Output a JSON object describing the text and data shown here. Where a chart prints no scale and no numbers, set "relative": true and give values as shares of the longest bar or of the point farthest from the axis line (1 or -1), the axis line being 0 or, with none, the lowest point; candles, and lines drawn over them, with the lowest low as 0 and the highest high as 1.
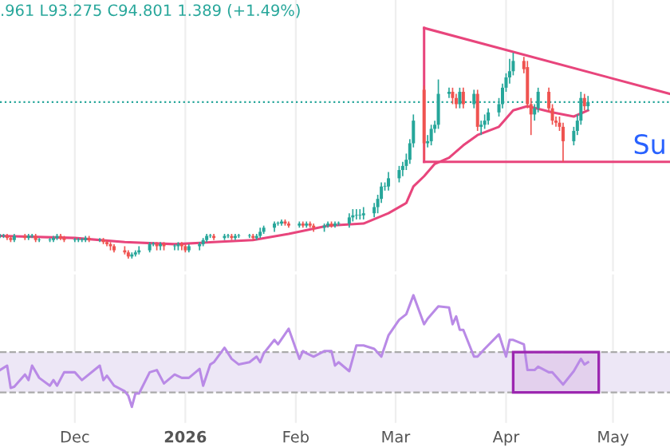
{
  "chart_data": [
    {
      "type": "candlestick",
      "relative": true,
      "tick_labels": false,
      "grid": "x",
      "legend": false,
      "annotations": [
        ".961 L93.275 C94.801 1.389 (+1.49%)",
        "Su"
      ],
      "xlim": [
        "2025-11-10",
        "2026-05-17"
      ],
      "xticks": [
        {
          "value": "2025-12-01",
          "label": null
        },
        {
          "value": "2026-01-01",
          "label": null
        },
        {
          "value": "2026-02-01",
          "label": null
        },
        {
          "value": "2026-03-01",
          "label": null
        },
        {
          "value": "2026-04-01",
          "label": null
        },
        {
          "value": "2026-05-01",
          "label": null
        }
      ],
      "x": [
        "2025-11-10",
        "2025-11-11",
        "2025-11-12",
        "2025-11-13",
        "2025-11-14",
        "2025-11-17",
        "2025-11-18",
        "2025-11-19",
        "2025-11-20",
        "2025-11-21",
        "2025-11-24",
        "2025-11-25",
        "2025-11-26",
        "2025-11-27",
        "2025-11-28",
        "2025-12-01",
        "2025-12-02",
        "2025-12-03",
        "2025-12-04",
        "2025-12-05",
        "2025-12-08",
        "2025-12-09",
        "2025-12-10",
        "2025-12-11",
        "2025-12-12",
        "2025-12-15",
        "2025-12-16",
        "2025-12-17",
        "2025-12-18",
        "2025-12-19",
        "2025-12-22",
        "2025-12-23",
        "2025-12-24",
        "2025-12-25",
        "2025-12-26",
        "2025-12-29",
        "2025-12-30",
        "2025-12-31",
        "2026-01-01",
        "2026-01-02",
        "2026-01-05",
        "2026-01-06",
        "2026-01-07",
        "2026-01-08",
        "2026-01-09",
        "2026-01-12",
        "2026-01-13",
        "2026-01-14",
        "2026-01-15",
        "2026-01-16",
        "2026-01-19",
        "2026-01-20",
        "2026-01-21",
        "2026-01-22",
        "2026-01-23",
        "2026-01-26",
        "2026-01-27",
        "2026-01-28",
        "2026-01-29",
        "2026-01-30",
        "2026-02-02",
        "2026-02-03",
        "2026-02-04",
        "2026-02-05",
        "2026-02-06",
        "2026-02-09",
        "2026-02-10",
        "2026-02-11",
        "2026-02-12",
        "2026-02-13",
        "2026-02-16",
        "2026-02-17",
        "2026-02-18",
        "2026-02-19",
        "2026-02-20",
        "2026-02-23",
        "2026-02-24",
        "2026-02-25",
        "2026-02-26",
        "2026-02-27",
        "2026-03-02",
        "2026-03-03",
        "2026-03-04",
        "2026-03-05",
        "2026-03-06",
        "2026-03-09",
        "2026-03-10",
        "2026-03-11",
        "2026-03-12",
        "2026-03-13",
        "2026-03-16",
        "2026-03-17",
        "2026-03-18",
        "2026-03-19",
        "2026-03-20",
        "2026-03-23",
        "2026-03-24",
        "2026-03-25",
        "2026-03-26",
        "2026-03-27",
        "2026-03-30",
        "2026-03-31",
        "2026-04-01",
        "2026-04-02",
        "2026-04-03",
        "2026-04-06",
        "2026-04-07",
        "2026-04-08",
        "2026-04-09",
        "2026-04-10",
        "2026-04-13",
        "2026-04-14",
        "2026-04-15",
        "2026-04-16",
        "2026-04-17",
        "2026-04-20",
        "2026-04-21",
        "2026-04-22",
        "2026-04-23",
        "2026-04-24"
      ],
      "ohlc": [
        [
          0.11,
          0.12,
          0.1,
          0.11
        ],
        [
          0.11,
          0.12,
          0.1,
          0.11
        ],
        [
          0.11,
          0.12,
          0.09,
          0.1
        ],
        [
          0.1,
          0.11,
          0.08,
          0.09
        ],
        [
          0.09,
          0.12,
          0.08,
          0.11
        ],
        [
          0.11,
          0.12,
          0.09,
          0.1
        ],
        [
          0.1,
          0.12,
          0.09,
          0.11
        ],
        [
          0.11,
          0.12,
          0.1,
          0.11
        ],
        [
          0.11,
          0.12,
          0.08,
          0.09
        ],
        [
          0.09,
          0.1,
          0.08,
          0.09
        ],
        [
          0.09,
          0.1,
          0.08,
          0.09
        ],
        [
          0.09,
          0.11,
          0.08,
          0.1
        ],
        [
          0.1,
          0.12,
          0.09,
          0.11
        ],
        [
          0.11,
          0.12,
          0.09,
          0.1
        ],
        [
          0.1,
          0.11,
          0.08,
          0.09
        ],
        [
          0.09,
          0.1,
          0.08,
          0.09
        ],
        [
          0.09,
          0.1,
          0.08,
          0.09
        ],
        [
          0.09,
          0.1,
          0.08,
          0.09
        ],
        [
          0.09,
          0.11,
          0.08,
          0.1
        ],
        [
          0.1,
          0.11,
          0.08,
          0.09
        ],
        [
          0.09,
          0.1,
          0.08,
          0.09
        ],
        [
          0.09,
          0.1,
          0.07,
          0.08
        ],
        [
          0.08,
          0.09,
          0.06,
          0.07
        ],
        [
          0.07,
          0.08,
          0.04,
          0.06
        ],
        [
          0.06,
          0.07,
          0.03,
          0.04
        ],
        [
          0.04,
          0.06,
          0.02,
          0.03
        ],
        [
          0.03,
          0.04,
          0,
          0.01
        ],
        [
          0.01,
          0.03,
          0,
          0.02
        ],
        [
          0.02,
          0.04,
          0.01,
          0.03
        ],
        [
          0.03,
          0.06,
          0.02,
          0.04
        ],
        [
          0.04,
          0.08,
          0.03,
          0.07
        ],
        [
          0.07,
          0.08,
          0.06,
          0.07
        ],
        [
          0.07,
          0.08,
          0.04,
          0.06
        ],
        [
          0.06,
          0.08,
          0.04,
          0.07
        ],
        [
          0.07,
          0.08,
          0.04,
          0.06
        ],
        [
          0.06,
          0.07,
          0.04,
          0.06
        ],
        [
          0.06,
          0.08,
          0.04,
          0.07
        ],
        [
          0.07,
          0.08,
          0.04,
          0.06
        ],
        [
          0.06,
          0.07,
          0.03,
          0.04
        ],
        [
          0.04,
          0.07,
          0.03,
          0.06
        ],
        [
          0.06,
          0.08,
          0.04,
          0.07
        ],
        [
          0.07,
          0.1,
          0.06,
          0.09
        ],
        [
          0.09,
          0.12,
          0.08,
          0.11
        ],
        [
          0.11,
          0.12,
          0.1,
          0.11
        ],
        [
          0.11,
          0.12,
          0.09,
          0.1
        ],
        [
          0.1,
          0.12,
          0.09,
          0.11
        ],
        [
          0.11,
          0.12,
          0.1,
          0.11
        ],
        [
          0.11,
          0.12,
          0.09,
          0.1
        ],
        [
          0.1,
          0.12,
          0.09,
          0.11
        ],
        [
          0.11,
          0.12,
          0.1,
          0.11
        ],
        [
          0.11,
          0.12,
          0.1,
          0.11
        ],
        [
          0.11,
          0.12,
          0.09,
          0.1
        ],
        [
          0.1,
          0.12,
          0.09,
          0.11
        ],
        [
          0.11,
          0.15,
          0.1,
          0.13
        ],
        [
          0.13,
          0.16,
          0.12,
          0.15
        ],
        [
          0.15,
          0.18,
          0.13,
          0.17
        ],
        [
          0.17,
          0.18,
          0.16,
          0.17
        ],
        [
          0.17,
          0.19,
          0.16,
          0.18
        ],
        [
          0.18,
          0.19,
          0.16,
          0.17
        ],
        [
          0.17,
          0.18,
          0.15,
          0.16
        ],
        [
          0.16,
          0.18,
          0.15,
          0.17
        ],
        [
          0.17,
          0.18,
          0.15,
          0.16
        ],
        [
          0.16,
          0.18,
          0.15,
          0.17
        ],
        [
          0.17,
          0.18,
          0.15,
          0.16
        ],
        [
          0.16,
          0.17,
          0.13,
          0.15
        ],
        [
          0.15,
          0.17,
          0.13,
          0.16
        ],
        [
          0.16,
          0.18,
          0.15,
          0.17
        ],
        [
          0.17,
          0.18,
          0.15,
          0.16
        ],
        [
          0.16,
          0.18,
          0.15,
          0.17
        ],
        [
          0.17,
          0.18,
          0.16,
          0.17
        ],
        [
          0.17,
          0.22,
          0.15,
          0.2
        ],
        [
          0.2,
          0.24,
          0.18,
          0.21
        ],
        [
          0.21,
          0.24,
          0.19,
          0.21
        ],
        [
          0.21,
          0.24,
          0.19,
          0.21
        ],
        [
          0.21,
          0.25,
          0.19,
          0.22
        ],
        [
          0.22,
          0.27,
          0.2,
          0.25
        ],
        [
          0.25,
          0.31,
          0.22,
          0.29
        ],
        [
          0.29,
          0.37,
          0.27,
          0.35
        ],
        [
          0.35,
          0.37,
          0.33,
          0.35
        ],
        [
          0.35,
          0.42,
          0.33,
          0.39
        ],
        [
          0.39,
          0.45,
          0.37,
          0.43
        ],
        [
          0.43,
          0.47,
          0.4,
          0.45
        ],
        [
          0.45,
          0.51,
          0.43,
          0.48
        ],
        [
          0.48,
          0.58,
          0.46,
          0.56
        ],
        [
          0.56,
          0.7,
          0.54,
          0.67
        ],
        [
          0.82,
          0.84,
          0.48,
          0.56
        ],
        [
          0.56,
          0.6,
          0.54,
          0.57
        ],
        [
          0.57,
          0.65,
          0.55,
          0.63
        ],
        [
          0.63,
          0.67,
          0.61,
          0.65
        ],
        [
          0.65,
          0.87,
          0.63,
          0.8
        ],
        [
          0.8,
          0.83,
          0.78,
          0.81
        ],
        [
          0.81,
          0.83,
          0.75,
          0.78
        ],
        [
          0.78,
          0.8,
          0.73,
          0.75
        ],
        [
          0.75,
          0.83,
          0.73,
          0.81
        ],
        [
          0.81,
          0.83,
          0.73,
          0.75
        ],
        [
          0.75,
          0.82,
          0.73,
          0.8
        ],
        [
          0.8,
          0.82,
          0.62,
          0.64
        ],
        [
          0.64,
          0.67,
          0.6,
          0.65
        ],
        [
          0.65,
          0.7,
          0.63,
          0.67
        ],
        [
          0.67,
          0.73,
          0.65,
          0.71
        ],
        [
          0.71,
          0.78,
          0.69,
          0.75
        ],
        [
          0.75,
          0.85,
          0.73,
          0.83
        ],
        [
          0.83,
          0.9,
          0.81,
          0.88
        ],
        [
          0.88,
          0.97,
          0.85,
          0.91
        ],
        [
          0.91,
          1.0,
          0.89,
          0.96
        ],
        [
          0.96,
          0.98,
          0.9,
          0.92
        ],
        [
          0.93,
          0.96,
          0.73,
          0.75
        ],
        [
          0.75,
          0.78,
          0.6,
          0.7
        ],
        [
          0.7,
          0.75,
          0.67,
          0.73
        ],
        [
          0.73,
          0.83,
          0.71,
          0.81
        ],
        [
          0.81,
          0.83,
          0.71,
          0.73
        ],
        [
          0.73,
          0.75,
          0.65,
          0.67
        ],
        [
          0.67,
          0.69,
          0.64,
          0.66
        ],
        [
          0.66,
          0.69,
          0.62,
          0.64
        ],
        [
          0.64,
          0.66,
          0.47,
          0.57
        ],
        [
          0.57,
          0.64,
          0.55,
          0.62
        ],
        [
          0.62,
          0.7,
          0.6,
          0.67
        ],
        [
          0.67,
          0.81,
          0.65,
          0.78
        ],
        [
          0.78,
          0.8,
          0.72,
          0.74
        ],
        [
          0.74,
          0.79,
          0.72,
          0.76
        ]
      ],
      "colors": [
        "#26a69a",
        "#26a69a",
        "#ef5350",
        "#ef5350",
        "#26a69a",
        "#ef5350",
        "#26a69a",
        "#26a69a",
        "#ef5350",
        "#26a69a",
        "#26a69a",
        "#26a69a",
        "#26a69a",
        "#ef5350",
        "#ef5350",
        "#26a69a",
        "#26a69a",
        "#26a69a",
        "#26a69a",
        "#ef5350",
        "#26a69a",
        "#ef5350",
        "#ef5350",
        "#ef5350",
        "#ef5350",
        "#ef5350",
        "#ef5350",
        "#26a69a",
        "#26a69a",
        "#26a69a",
        "#26a69a",
        "#26a69a",
        "#ef5350",
        "#26a69a",
        "#ef5350",
        "#26a69a",
        "#26a69a",
        "#ef5350",
        "#ef5350",
        "#26a69a",
        "#26a69a",
        "#26a69a",
        "#26a69a",
        "#26a69a",
        "#ef5350",
        "#26a69a",
        "#26a69a",
        "#ef5350",
        "#26a69a",
        "#26a69a",
        "#26a69a",
        "#ef5350",
        "#26a69a",
        "#26a69a",
        "#26a69a",
        "#26a69a",
        "#26a69a",
        "#26a69a",
        "#ef5350",
        "#ef5350",
        "#26a69a",
        "#ef5350",
        "#26a69a",
        "#ef5350",
        "#ef5350",
        "#26a69a",
        "#26a69a",
        "#ef5350",
        "#26a69a",
        "#26a69a",
        "#26a69a",
        "#26a69a",
        "#26a69a",
        "#26a69a",
        "#26a69a",
        "#26a69a",
        "#26a69a",
        "#26a69a",
        "#26a69a",
        "#26a69a",
        "#26a69a",
        "#26a69a",
        "#26a69a",
        "#26a69a",
        "#26a69a",
        "#ef5350",
        "#26a69a",
        "#26a69a",
        "#26a69a",
        "#26a69a",
        "#26a69a",
        "#ef5350",
        "#ef5350",
        "#26a69a",
        "#ef5350",
        "#26a69a",
        "#ef5350",
        "#26a69a",
        "#26a69a",
        "#26a69a",
        "#26a69a",
        "#26a69a",
        "#26a69a",
        "#26a69a",
        "#26a69a",
        "#ef5350",
        "#ef5350",
        "#ef5350",
        "#26a69a",
        "#26a69a",
        "#ef5350",
        "#ef5350",
        "#ef5350",
        "#ef5350",
        "#ef5350",
        "#26a69a",
        "#26a69a",
        "#26a69a",
        "#ef5350",
        "#26a69a"
      ],
      "series": [
        {
          "type": "line",
          "color": "#e8457c",
          "x": [
            "2025-11-10",
            "2025-12-01",
            "2025-12-15",
            "2025-12-29",
            "2026-01-09",
            "2026-01-20",
            "2026-01-30",
            "2026-02-10",
            "2026-02-20",
            "2026-02-27",
            "2026-03-04",
            "2026-03-06",
            "2026-03-09",
            "2026-03-12",
            "2026-03-16",
            "2026-03-20",
            "2026-03-24",
            "2026-03-30",
            "2026-04-03",
            "2026-04-07",
            "2026-04-14",
            "2026-04-20",
            "2026-04-24"
          ],
          "values": [
            0.11,
            0.1,
            0.08,
            0.07,
            0.08,
            0.09,
            0.12,
            0.16,
            0.17,
            0.22,
            0.27,
            0.35,
            0.4,
            0.46,
            0.49,
            0.55,
            0.6,
            0.64,
            0.72,
            0.74,
            0.71,
            0.69,
            0.72
          ]
        },
        {
          "type": "line",
          "color": "#e8457c",
          "x": [
            "2026-03-09",
            "2026-05-17"
          ],
          "values": [
            1.12,
            0.8
          ]
        },
        {
          "type": "line",
          "color": "#e8457c",
          "x": [
            "2026-03-09",
            "2026-03-09"
          ],
          "values": [
            1.12,
            0.47
          ]
        },
        {
          "type": "line",
          "color": "#e8457c",
          "x": [
            "2026-03-09",
            "2026-05-17"
          ],
          "values": [
            0.47,
            0.47
          ]
        }
      ],
      "ref_lines": [
        {
          "axis": "y",
          "value": 0.76,
          "color": "#26a69a",
          "line_style": "dotted"
        }
      ]
    },
    {
      "type": "line",
      "relative": true,
      "tick_labels": "x",
      "grid": "x",
      "legend": false,
      "ref_lines": [
        {
          "axis": "y",
          "value": 0.13,
          "color": "#aaaaaa",
          "line_style": "dashed"
        },
        {
          "axis": "y",
          "value": 0.49,
          "color": "#aaaaaa",
          "line_style": "dashed"
        }
      ],
      "xlim": [
        "2025-11-10",
        "2026-05-17"
      ],
      "xticks": [
        {
          "value": "2025-12-01",
          "label": "Dec"
        },
        {
          "value": "2026-01-01",
          "label": "2026"
        },
        {
          "value": "2026-02-01",
          "label": "Feb"
        },
        {
          "value": "2026-03-01",
          "label": "Mar"
        },
        {
          "value": "2026-04-01",
          "label": "Apr"
        },
        {
          "value": "2026-05-01",
          "label": "May"
        }
      ],
      "series": [
        {
          "color": "#b98ae6",
          "x": [
            "2025-11-10",
            "2025-11-12",
            "2025-11-13",
            "2025-11-14",
            "2025-11-17",
            "2025-11-18",
            "2025-11-19",
            "2025-11-21",
            "2025-11-24",
            "2025-11-25",
            "2025-11-26",
            "2025-11-28",
            "2025-12-01",
            "2025-12-03",
            "2025-12-08",
            "2025-12-09",
            "2025-12-10",
            "2025-12-12",
            "2025-12-15",
            "2025-12-16",
            "2025-12-17",
            "2025-12-18",
            "2025-12-19",
            "2025-12-22",
            "2025-12-24",
            "2025-12-26",
            "2025-12-29",
            "2025-12-31",
            "2026-01-02",
            "2026-01-05",
            "2026-01-06",
            "2026-01-08",
            "2026-01-09",
            "2026-01-12",
            "2026-01-14",
            "2026-01-16",
            "2026-01-19",
            "2026-01-21",
            "2026-01-22",
            "2026-01-23",
            "2026-01-26",
            "2026-01-27",
            "2026-01-30",
            "2026-02-02",
            "2026-02-03",
            "2026-02-04",
            "2026-02-06",
            "2026-02-09",
            "2026-02-11",
            "2026-02-12",
            "2026-02-13",
            "2026-02-16",
            "2026-02-18",
            "2026-02-20",
            "2026-02-23",
            "2026-02-25",
            "2026-02-27",
            "2026-03-02",
            "2026-03-04",
            "2026-03-06",
            "2026-03-09",
            "2026-03-10",
            "2026-03-13",
            "2026-03-16",
            "2026-03-17",
            "2026-03-18",
            "2026-03-19",
            "2026-03-20",
            "2026-03-23",
            "2026-03-24",
            "2026-03-26",
            "2026-03-30",
            "2026-04-01",
            "2026-04-02",
            "2026-04-03",
            "2026-04-06",
            "2026-04-07",
            "2026-04-09",
            "2026-04-10",
            "2026-04-13",
            "2026-04-14",
            "2026-04-17",
            "2026-04-20",
            "2026-04-22",
            "2026-04-23",
            "2026-04-24"
          ],
          "values": [
            0.33,
            0.37,
            0.17,
            0.18,
            0.29,
            0.24,
            0.37,
            0.26,
            0.19,
            0.24,
            0.19,
            0.31,
            0.31,
            0.24,
            0.37,
            0.24,
            0.28,
            0.19,
            0.14,
            0.1,
            0,
            0.12,
            0.12,
            0.31,
            0.33,
            0.21,
            0.29,
            0.26,
            0.26,
            0.34,
            0.19,
            0.38,
            0.4,
            0.53,
            0.43,
            0.38,
            0.4,
            0.45,
            0.4,
            0.48,
            0.6,
            0.56,
            0.7,
            0.43,
            0.5,
            0.48,
            0.45,
            0.5,
            0.5,
            0.37,
            0.4,
            0.32,
            0.55,
            0.55,
            0.52,
            0.45,
            0.64,
            0.78,
            0.83,
            1.0,
            0.74,
            0.79,
            0.9,
            0.89,
            0.74,
            0.81,
            0.69,
            0.69,
            0.45,
            0.45,
            0.52,
            0.65,
            0.45,
            0.6,
            0.6,
            0.56,
            0.33,
            0.33,
            0.36,
            0.31,
            0.31,
            0.2,
            0.32,
            0.43,
            0.38,
            0.4
          ]
        }
      ],
      "bands": [
        {
          "axis": "y",
          "from": 0.13,
          "to": 0.49,
          "color": "#ede7f6"
        },
        {
          "axis": "x",
          "from": "2026-04-03",
          "to": "2026-04-27",
          "color": "#9c27b0"
        }
      ]
    }
  ]
}
